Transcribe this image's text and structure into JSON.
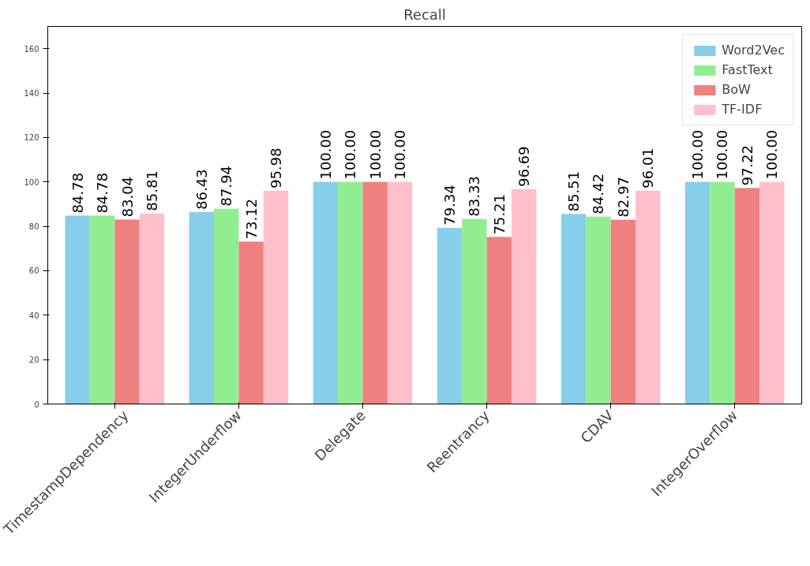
{
  "chart_data": {
    "type": "bar",
    "title": "Recall",
    "categories": [
      "TimestampDependency",
      "IntegerUnderflow",
      "Delegate",
      "Reentrancy",
      "CDAV",
      "IntegerOverflow"
    ],
    "series": [
      {
        "name": "Word2Vec",
        "color": "#87ceeb",
        "values": [
          84.78,
          86.43,
          100.0,
          79.34,
          85.51,
          100.0
        ],
        "value_labels": [
          "84.78",
          "86.43",
          "100.00",
          "79.34",
          "85.51",
          "100.00"
        ]
      },
      {
        "name": "FastText",
        "color": "#90ee90",
        "values": [
          84.78,
          87.94,
          100.0,
          83.33,
          84.42,
          100.0
        ],
        "value_labels": [
          "84.78",
          "87.94",
          "100.00",
          "83.33",
          "84.42",
          "100.00"
        ]
      },
      {
        "name": "BoW",
        "color": "#f08080",
        "values": [
          83.04,
          73.12,
          100.0,
          75.21,
          82.97,
          97.22
        ],
        "value_labels": [
          "83.04",
          "73.12",
          "100.00",
          "75.21",
          "82.97",
          "97.22"
        ]
      },
      {
        "name": "TF-IDF",
        "color": "#ffc0cb",
        "values": [
          85.81,
          95.98,
          100.0,
          96.69,
          96.01,
          100.0
        ],
        "value_labels": [
          "85.81",
          "95.98",
          "100.00",
          "96.69",
          "96.01",
          "100.00"
        ]
      }
    ],
    "ylim": [
      0,
      170
    ],
    "yticks": [
      0,
      20,
      40,
      60,
      80,
      100,
      120,
      140,
      160
    ],
    "grid": false,
    "legend": "top right"
  }
}
